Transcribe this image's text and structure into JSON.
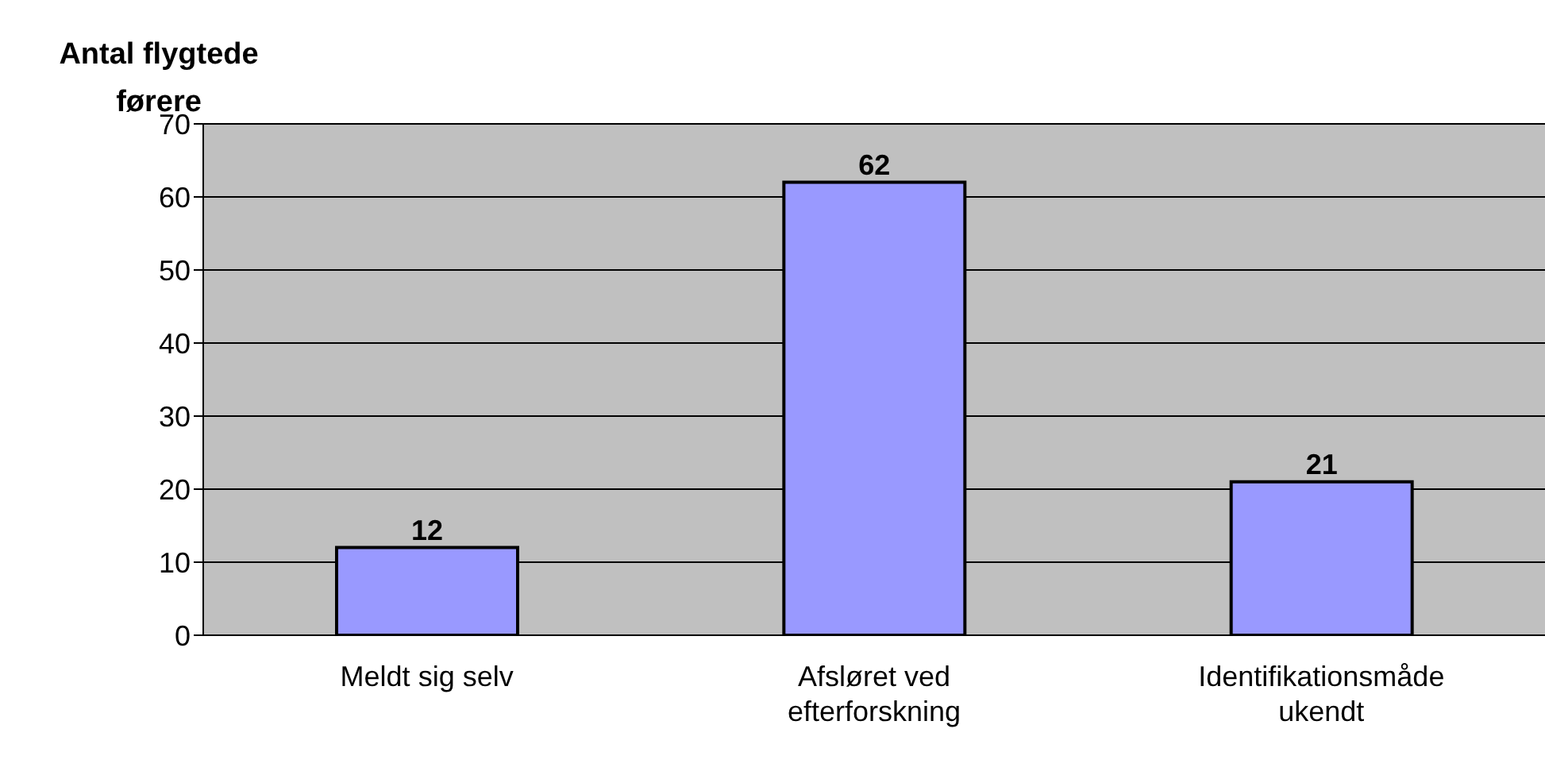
{
  "chart_data": {
    "type": "bar",
    "ylabel": "Antal flygtede førere",
    "categories": [
      "Meldt sig selv",
      "Afsløret ved efterforskning",
      "Identifikationsmåde ukendt"
    ],
    "values": [
      12,
      62,
      21
    ],
    "color": "#9999ff",
    "ylim": [
      0,
      70
    ],
    "yticks": [
      0,
      10,
      20,
      30,
      40,
      50,
      60,
      70
    ],
    "grid": "y",
    "data_labels": true
  }
}
